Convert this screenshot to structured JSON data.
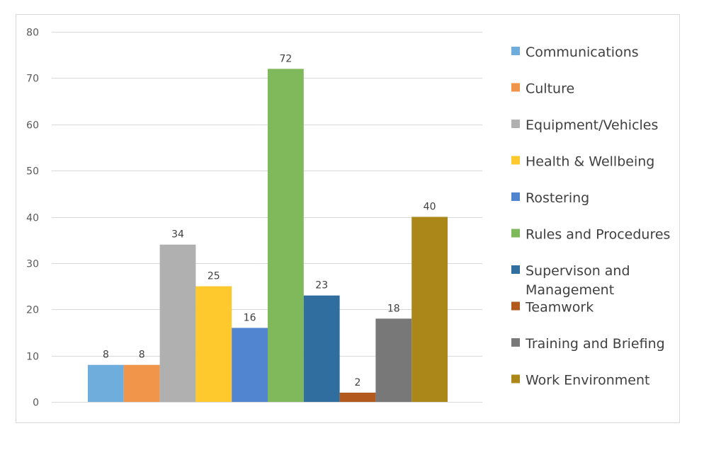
{
  "chart_data": {
    "type": "bar",
    "title": "",
    "xlabel": "",
    "ylabel": "",
    "ylim": [
      0,
      80
    ],
    "yticks": [
      0,
      10,
      20,
      30,
      40,
      50,
      60,
      70,
      80
    ],
    "grid": true,
    "legend_position": "right",
    "series": [
      {
        "name": "Communications",
        "values": [
          8
        ],
        "color": "#6FADDC"
      },
      {
        "name": "Culture",
        "values": [
          8
        ],
        "color": "#F0954A"
      },
      {
        "name": "Equipment/Vehicles",
        "values": [
          34
        ],
        "color": "#B0B0B0"
      },
      {
        "name": "Health & Wellbeing",
        "values": [
          25
        ],
        "color": "#FEC92C"
      },
      {
        "name": "Rostering",
        "values": [
          16
        ],
        "color": "#5285CF"
      },
      {
        "name": "Rules and Procedures",
        "values": [
          72
        ],
        "color": "#80B95C"
      },
      {
        "name": "Supervison and Management",
        "values": [
          23
        ],
        "color": "#2F6E9E"
      },
      {
        "name": "Teamwork",
        "values": [
          2
        ],
        "color": "#B25A1E"
      },
      {
        "name": "Training and Briefing",
        "values": [
          18
        ],
        "color": "#787878"
      },
      {
        "name": "Work Environment",
        "values": [
          40
        ],
        "color": "#AB8619"
      }
    ]
  }
}
